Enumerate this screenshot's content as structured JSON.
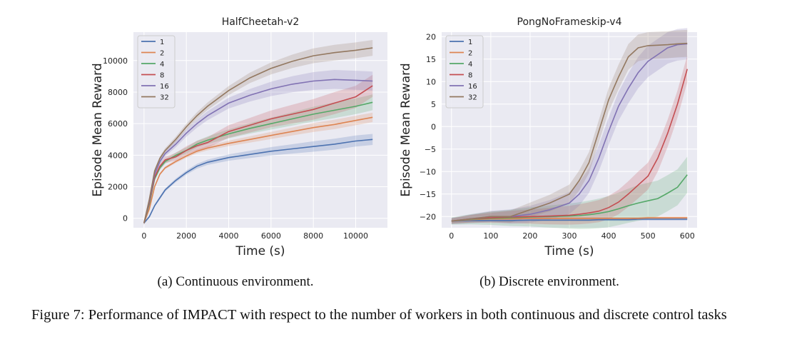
{
  "chart_data": [
    {
      "type": "line",
      "title": "HalfCheetah-v2",
      "xlabel": "Time (s)",
      "ylabel": "Episode Mean Reward",
      "xlim": [
        -500,
        11500
      ],
      "ylim": [
        -600,
        11800
      ],
      "xticks": [
        0,
        2000,
        4000,
        6000,
        8000,
        10000
      ],
      "yticks": [
        0,
        2000,
        4000,
        6000,
        8000,
        10000
      ],
      "grid": true,
      "legend_position": "top-left",
      "x": [
        0,
        250,
        500,
        750,
        1000,
        1500,
        2000,
        2500,
        3000,
        4000,
        5000,
        6000,
        7000,
        8000,
        9000,
        10000,
        10800
      ],
      "series": [
        {
          "name": "1",
          "color": "#4c72b0",
          "values": [
            -300,
            100,
            800,
            1300,
            1800,
            2400,
            2900,
            3300,
            3550,
            3850,
            4050,
            4250,
            4400,
            4550,
            4700,
            4900,
            5000
          ],
          "band": 350
        },
        {
          "name": "2",
          "color": "#dd8452",
          "values": [
            -300,
            600,
            2000,
            2800,
            3200,
            3600,
            3950,
            4250,
            4450,
            4750,
            5000,
            5250,
            5500,
            5750,
            5950,
            6200,
            6400
          ],
          "band": 300
        },
        {
          "name": "4",
          "color": "#55a868",
          "values": [
            -300,
            900,
            2500,
            3200,
            3600,
            4000,
            4300,
            4700,
            4950,
            5350,
            5700,
            6000,
            6300,
            6600,
            6850,
            7100,
            7350
          ],
          "band": 500
        },
        {
          "name": "8",
          "color": "#c44e52",
          "values": [
            -300,
            1000,
            2600,
            3300,
            3700,
            3900,
            4300,
            4600,
            4800,
            5500,
            5900,
            6300,
            6600,
            6900,
            7300,
            7700,
            8400
          ],
          "band": 700
        },
        {
          "name": "16",
          "color": "#8172b3",
          "values": [
            -300,
            1100,
            2800,
            3600,
            4100,
            4700,
            5400,
            6000,
            6500,
            7300,
            7800,
            8200,
            8500,
            8700,
            8800,
            8750,
            8700
          ],
          "band": 600
        },
        {
          "name": "32",
          "color": "#937860",
          "values": [
            -300,
            1200,
            3000,
            3800,
            4300,
            5000,
            5800,
            6500,
            7100,
            8100,
            8900,
            9500,
            9950,
            10300,
            10500,
            10650,
            10800
          ],
          "band": 500
        }
      ]
    },
    {
      "type": "line",
      "title": "PongNoFrameskip-v4",
      "xlabel": "Time (s)",
      "ylabel": "Episode Mean Reward",
      "xlim": [
        -25,
        625
      ],
      "ylim": [
        -22.5,
        21
      ],
      "xticks": [
        0,
        100,
        200,
        300,
        400,
        500,
        600
      ],
      "yticks": [
        -20,
        -15,
        -10,
        -5,
        0,
        5,
        10,
        15,
        20
      ],
      "grid": true,
      "legend_position": "top-left",
      "x": [
        0,
        50,
        100,
        150,
        200,
        250,
        300,
        325,
        350,
        375,
        400,
        425,
        450,
        475,
        500,
        525,
        550,
        575,
        600
      ],
      "series": [
        {
          "name": "1",
          "color": "#4c72b0",
          "values": [
            -21,
            -20.9,
            -20.9,
            -20.9,
            -20.8,
            -20.8,
            -20.8,
            -20.8,
            -20.8,
            -20.7,
            -20.7,
            -20.7,
            -20.7,
            -20.6,
            -20.6,
            -20.6,
            -20.6,
            -20.6,
            -20.6
          ],
          "band": 0.3
        },
        {
          "name": "2",
          "color": "#dd8452",
          "values": [
            -21,
            -20.7,
            -20.5,
            -20.5,
            -20.4,
            -20.4,
            -20.4,
            -20.4,
            -20.4,
            -20.4,
            -20.4,
            -20.4,
            -20.4,
            -20.4,
            -20.3,
            -20.3,
            -20.3,
            -20.3,
            -20.3
          ],
          "band": 0.3
        },
        {
          "name": "4",
          "color": "#55a868",
          "values": [
            -21,
            -20.6,
            -20.4,
            -20.3,
            -20.1,
            -20.0,
            -19.9,
            -19.8,
            -19.6,
            -19.3,
            -18.9,
            -18.3,
            -17.6,
            -17.0,
            -16.5,
            -16.0,
            -14.8,
            -13.5,
            -10.7
          ],
          "band": 4
        },
        {
          "name": "8",
          "color": "#c44e52",
          "values": [
            -21,
            -20.5,
            -20.3,
            -20.1,
            -20.0,
            -19.9,
            -19.7,
            -19.5,
            -19.2,
            -18.8,
            -18.0,
            -16.8,
            -15.0,
            -13.0,
            -11.0,
            -7.0,
            -1.5,
            5.0,
            12.8
          ],
          "band": 3
        },
        {
          "name": "16",
          "color": "#8172b3",
          "values": [
            -21,
            -20.5,
            -20.0,
            -20.0,
            -19.5,
            -18.5,
            -17.0,
            -15.0,
            -12.0,
            -7.0,
            -1.0,
            4.5,
            8.5,
            12.0,
            14.5,
            16.0,
            17.5,
            18.2,
            18.4
          ],
          "band": 3.5
        },
        {
          "name": "32",
          "color": "#937860",
          "values": [
            -21,
            -20.5,
            -20.0,
            -20.0,
            -18.5,
            -17.0,
            -15.0,
            -12.0,
            -8.0,
            -1.0,
            6.0,
            11.0,
            15.5,
            17.5,
            18.0,
            18.1,
            18.2,
            18.4,
            18.5
          ],
          "band": 3
        }
      ]
    }
  ],
  "captions": {
    "sub_a": "(a) Continuous environment.",
    "sub_b": "(b) Discrete environment.",
    "figure": "Figure 7: Performance of IMPACT with respect to the number of workers in both continuous and discrete control tasks"
  }
}
